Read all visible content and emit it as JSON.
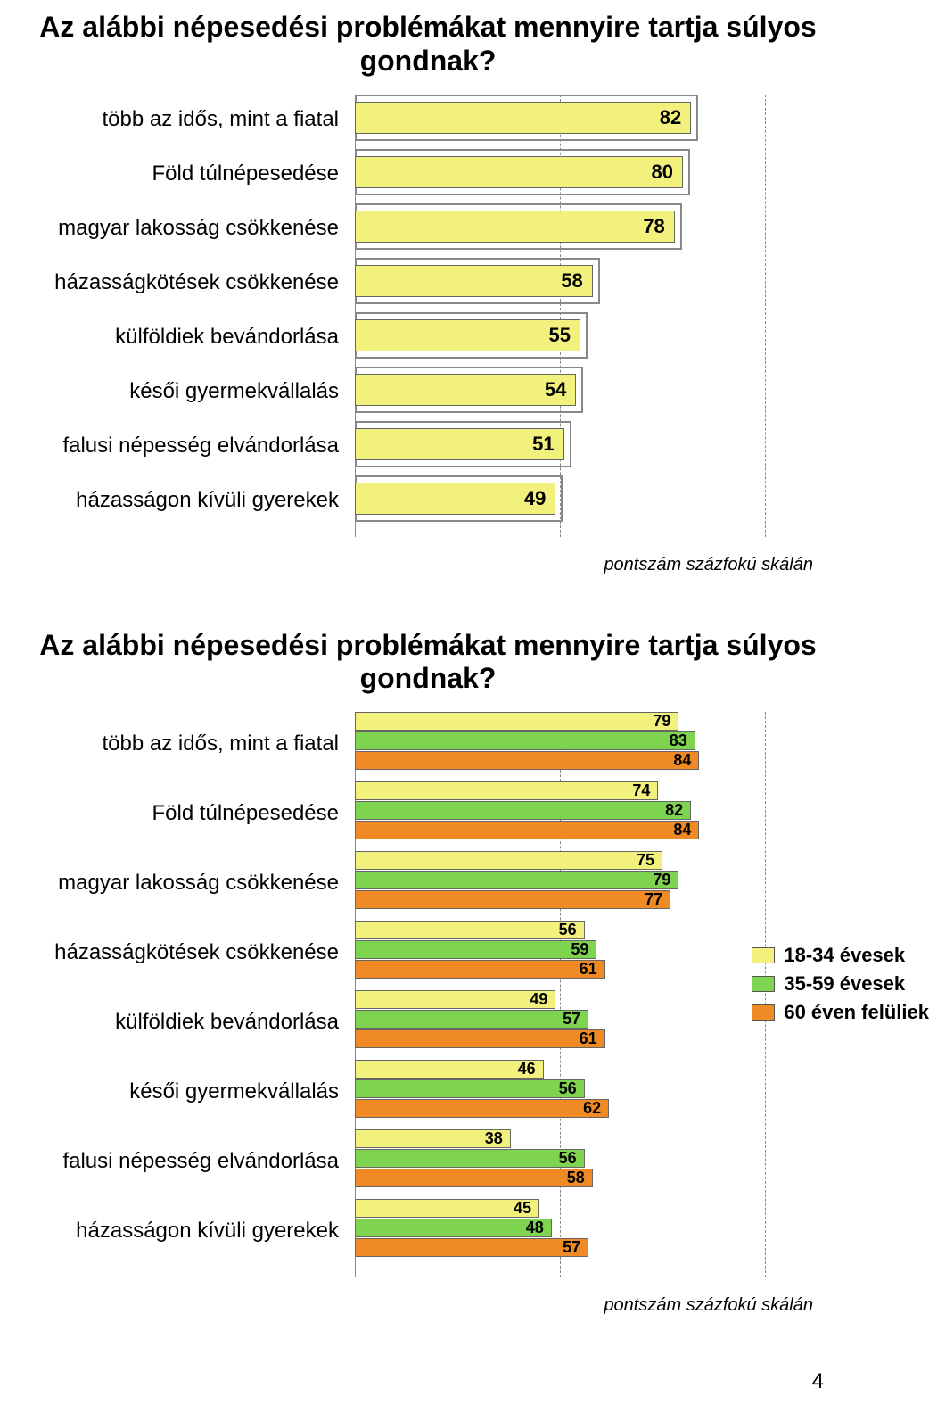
{
  "chart1": {
    "type": "bar",
    "title": "Az alábbi népesedési problémákat mennyire tartja súlyos gondnak?",
    "categories": [
      "több az idős, mint a fiatal",
      "Föld túlnépesedése",
      "magyar lakosság csökkenése",
      "házasságkötések csökkenése",
      "külföldiek bevándorlása",
      "késői gyermekvállalás",
      "falusi népesség elvándorlása",
      "házasságon kívüli gyerekek"
    ],
    "values": [
      82,
      80,
      78,
      58,
      55,
      54,
      51,
      49
    ],
    "bar_color": "#f3f17d",
    "cap_border_color": "#888888",
    "xlim": [
      0,
      100
    ],
    "gridlines_at": [
      50,
      100
    ],
    "grid_color": "#888888",
    "label_fontsize": 24,
    "value_fontsize": 22,
    "title_fontsize": 32,
    "footnote": "pontszám százfokú skálán",
    "footnote_fontsize": 20
  },
  "chart2": {
    "type": "grouped-bar",
    "title": "Az alábbi népesedési problémákat mennyire tartja súlyos gondnak?",
    "categories": [
      "több az idős, mint a fiatal",
      "Föld túlnépesedése",
      "magyar lakosság csökkenése",
      "házasságkötések csökkenése",
      "külföldiek bevándorlása",
      "késői gyermekvállalás",
      "falusi népesség elvándorlása",
      "házasságon kívüli gyerekek"
    ],
    "series": [
      {
        "label": "18-34 évesek",
        "color": "#f3f17d"
      },
      {
        "label": "35-59 évesek",
        "color": "#7ed34f"
      },
      {
        "label": "60 éven felüliek",
        "color": "#f08a24"
      }
    ],
    "values": [
      [
        79,
        83,
        84
      ],
      [
        74,
        82,
        84
      ],
      [
        75,
        79,
        77
      ],
      [
        56,
        59,
        61
      ],
      [
        49,
        57,
        61
      ],
      [
        46,
        56,
        62
      ],
      [
        38,
        56,
        58
      ],
      [
        45,
        48,
        57
      ]
    ],
    "xlim": [
      0,
      100
    ],
    "gridlines_at": [
      50,
      100
    ],
    "grid_color": "#888888",
    "label_fontsize": 24,
    "value_fontsize": 18,
    "title_fontsize": 32,
    "footnote": "pontszám százfokú skálán",
    "footnote_fontsize": 20
  },
  "page_number": "4"
}
